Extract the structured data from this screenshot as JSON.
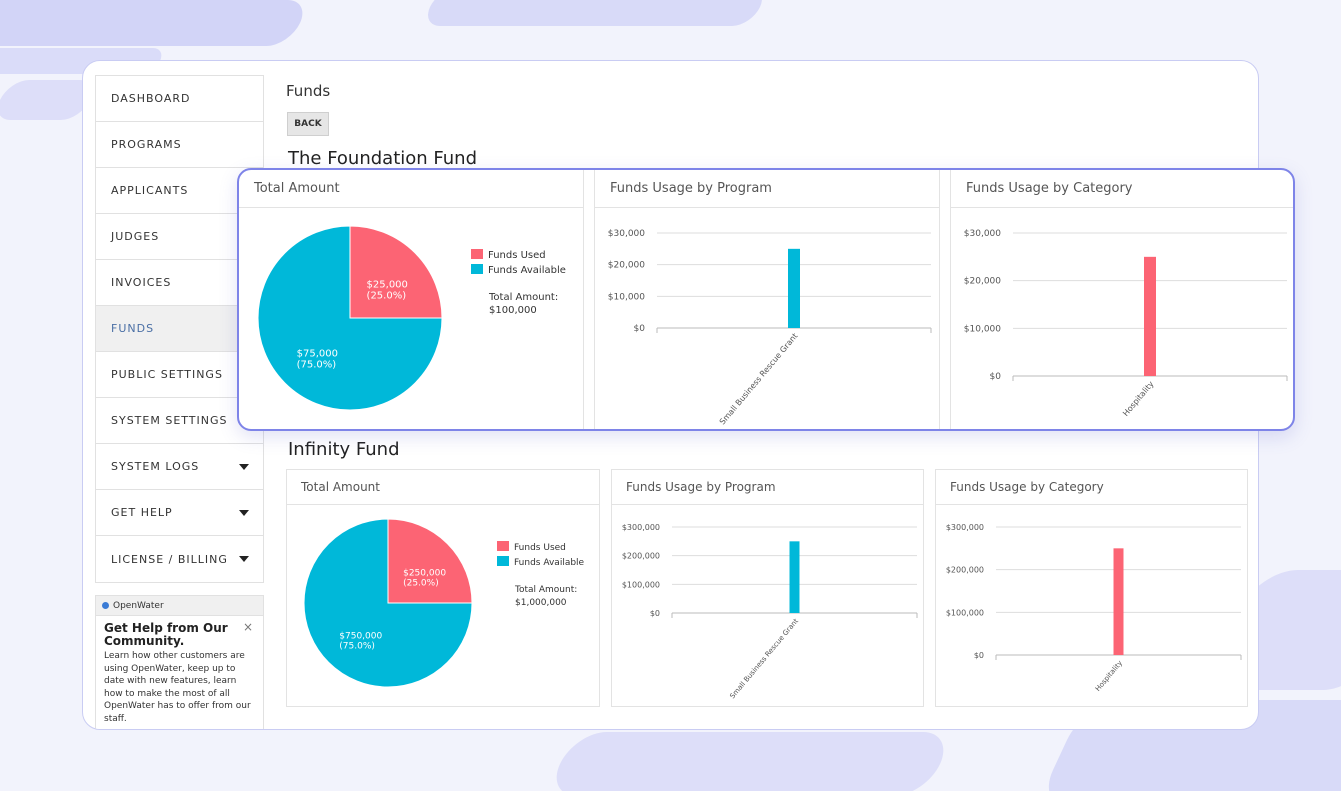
{
  "sidebar": {
    "items": [
      {
        "label": "DASHBOARD",
        "caret": false
      },
      {
        "label": "PROGRAMS",
        "caret": false
      },
      {
        "label": "APPLICANTS",
        "caret": false
      },
      {
        "label": "JUDGES",
        "caret": false
      },
      {
        "label": "INVOICES",
        "caret": false
      },
      {
        "label": "FUNDS",
        "caret": false,
        "active": true
      },
      {
        "label": "PUBLIC SETTINGS",
        "caret": false
      },
      {
        "label": "SYSTEM SETTINGS",
        "caret": false
      },
      {
        "label": "SYSTEM LOGS",
        "caret": true
      },
      {
        "label": "GET HELP",
        "caret": true
      },
      {
        "label": "LICENSE / BILLING",
        "caret": true
      }
    ]
  },
  "help": {
    "brand": "OpenWater",
    "title": "Get Help from Our Community.",
    "body": "Learn how other customers are using OpenWater, keep up to date with new features, learn how to make the most of all OpenWater has to offer from our staff.",
    "close": "×"
  },
  "page": {
    "title": "Funds",
    "back_label": "BACK"
  },
  "colors": {
    "used": "#fc6474",
    "available": "#00b8d9",
    "accent": "#7e84e8"
  },
  "funds": [
    {
      "name": "The Foundation Fund",
      "panels": {
        "total": "Total Amount",
        "program": "Funds Usage by Program",
        "category": "Funds Usage by Category"
      },
      "legend": {
        "used": "Funds Used",
        "available": "Funds Available"
      },
      "total_label": "Total Amount:",
      "total_value": "$100,000",
      "pie_labels": {
        "used_value": "$25,000",
        "used_pct": "(25.0%)",
        "available_value": "$75,000",
        "available_pct": "(75.0%)"
      }
    },
    {
      "name": "Infinity Fund",
      "panels": {
        "total": "Total Amount",
        "program": "Funds Usage by Program",
        "category": "Funds Usage by Category"
      },
      "legend": {
        "used": "Funds Used",
        "available": "Funds Available"
      },
      "total_label": "Total Amount:",
      "total_value": "$1,000,000",
      "pie_labels": {
        "used_value": "$250,000",
        "used_pct": "(25.0%)",
        "available_value": "$750,000",
        "available_pct": "(75.0%)"
      }
    }
  ],
  "chart_data": [
    {
      "type": "pie",
      "fund": "The Foundation Fund",
      "categories": [
        "Funds Used",
        "Funds Available"
      ],
      "values": [
        25000,
        75000
      ]
    },
    {
      "type": "bar",
      "fund": "The Foundation Fund",
      "title": "Funds Usage by Program",
      "categories": [
        "Small Business Rescue Grant"
      ],
      "values": [
        25000
      ],
      "yticks": [
        "$0",
        "$10,000",
        "$20,000",
        "$30,000"
      ],
      "ylim": [
        0,
        30000
      ],
      "grid": true
    },
    {
      "type": "bar",
      "fund": "The Foundation Fund",
      "title": "Funds Usage by Category",
      "categories": [
        "Hospitality"
      ],
      "values": [
        25000
      ],
      "yticks": [
        "$0",
        "$10,000",
        "$20,000",
        "$30,000"
      ],
      "ylim": [
        0,
        30000
      ],
      "grid": true
    },
    {
      "type": "pie",
      "fund": "Infinity Fund",
      "categories": [
        "Funds Used",
        "Funds Available"
      ],
      "values": [
        250000,
        750000
      ]
    },
    {
      "type": "bar",
      "fund": "Infinity Fund",
      "title": "Funds Usage by Program",
      "categories": [
        "Small Business Rescue Grant"
      ],
      "values": [
        250000
      ],
      "yticks": [
        "$0",
        "$100,000",
        "$200,000",
        "$300,000"
      ],
      "ylim": [
        0,
        300000
      ],
      "grid": true
    },
    {
      "type": "bar",
      "fund": "Infinity Fund",
      "title": "Funds Usage by Category",
      "categories": [
        "Hospitality"
      ],
      "values": [
        250000
      ],
      "yticks": [
        "$0",
        "$100,000",
        "$200,000",
        "$300,000"
      ],
      "ylim": [
        0,
        300000
      ],
      "grid": true
    }
  ]
}
